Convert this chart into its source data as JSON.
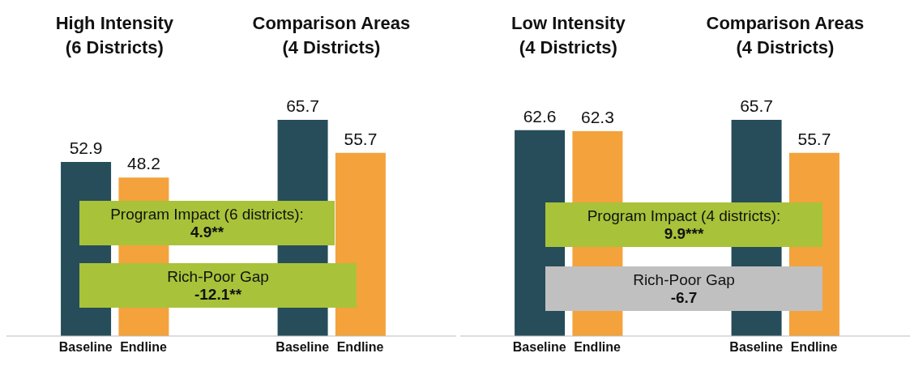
{
  "chart_data": [
    {
      "type": "bar",
      "categories": [
        "Baseline",
        "Endline",
        "Baseline",
        "Endline"
      ],
      "values": [
        52.9,
        48.2,
        65.7,
        55.7
      ],
      "colors": [
        "#264d59",
        "#f4a23c",
        "#264d59",
        "#f4a23c"
      ],
      "data_labels": true,
      "annotations": [
        "High Intensity\n(6 Districts)",
        "Comparison Areas\n(4 Districts)",
        "Program Impact (6 districts):\n4.9**",
        "Rich-Poor Gap\n-12.1**"
      ]
    },
    {
      "type": "bar",
      "categories": [
        "Baseline",
        "Endline",
        "Baseline",
        "Endline"
      ],
      "values": [
        62.6,
        62.3,
        65.7,
        55.7
      ],
      "colors": [
        "#264d59",
        "#f4a23c",
        "#264d59",
        "#f4a23c"
      ],
      "data_labels": true,
      "annotations": [
        "Low Intensity\n(4 Districts)",
        "Comparison Areas\n(4 Districts)",
        "Program Impact (4 districts):\n9.9***",
        "Rich-Poor Gap\n-6.7"
      ]
    }
  ]
}
